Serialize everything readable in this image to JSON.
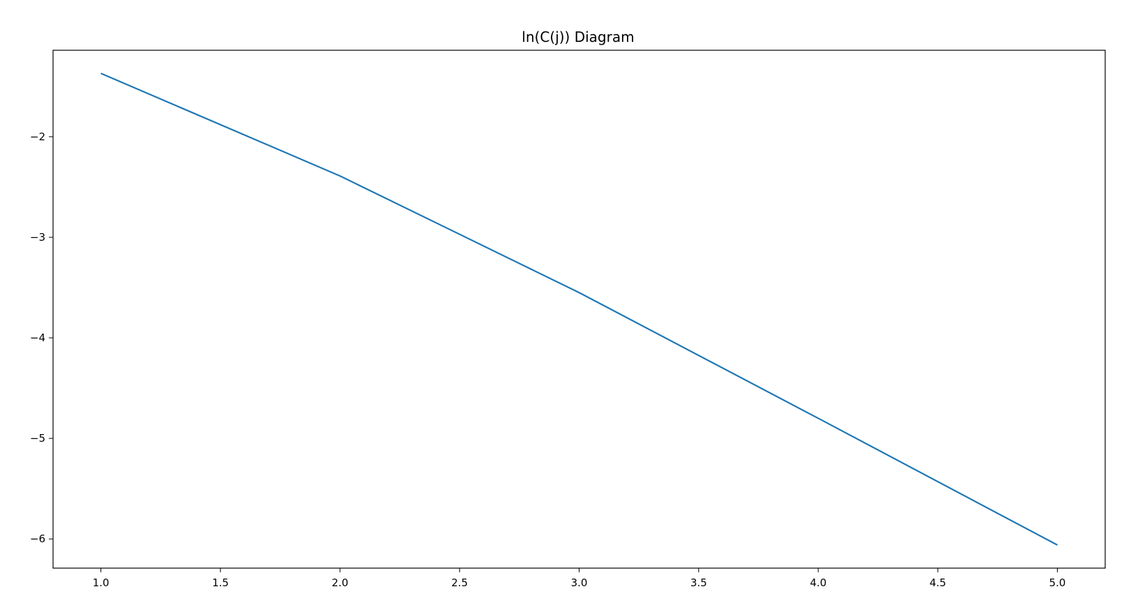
{
  "chart_data": {
    "type": "line",
    "title": "ln(C(j)) Diagram",
    "xlabel": "",
    "ylabel": "",
    "x": [
      1,
      2,
      3,
      4,
      5
    ],
    "series": [
      {
        "values": [
          -1.37,
          -2.39,
          -3.55,
          -4.8,
          -6.06
        ],
        "color": "#1f77b4"
      }
    ],
    "xlim": [
      0.8,
      5.2
    ],
    "ylim": [
      -6.29,
      -1.14
    ],
    "xticks": [
      1.0,
      1.5,
      2.0,
      2.5,
      3.0,
      3.5,
      4.0,
      4.5,
      5.0
    ],
    "xtick_labels": [
      "1.0",
      "1.5",
      "2.0",
      "2.5",
      "3.0",
      "3.5",
      "4.0",
      "4.5",
      "5.0"
    ],
    "yticks": [
      -2,
      -3,
      -4,
      -5,
      -6
    ],
    "ytick_labels": [
      "−2",
      "−3",
      "−4",
      "−5",
      "−6"
    ],
    "grid": false,
    "legend": "none"
  }
}
